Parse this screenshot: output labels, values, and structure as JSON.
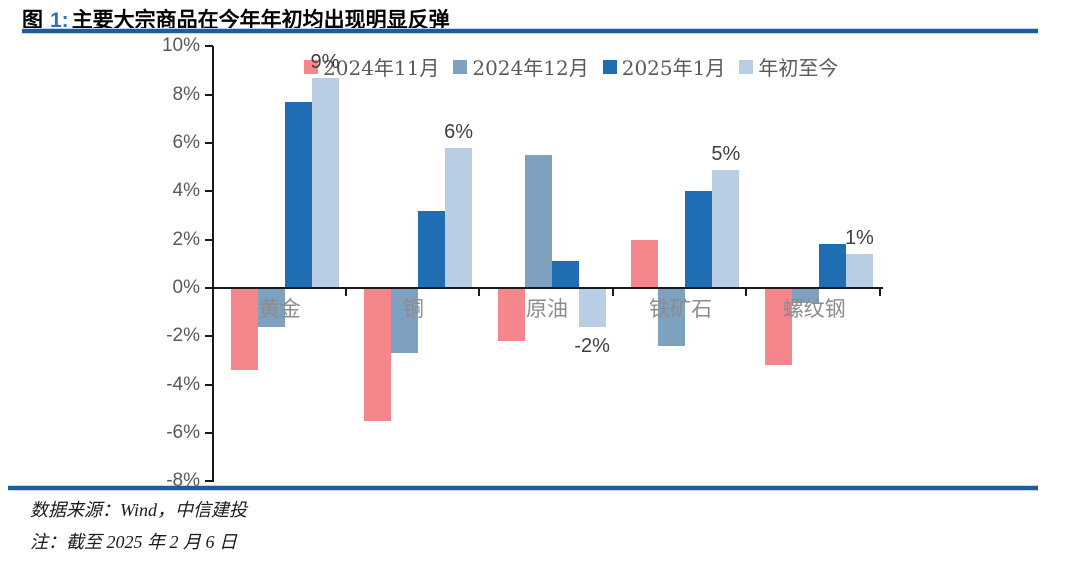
{
  "header": {
    "figure_label": "图",
    "figure_number": "1:",
    "title": "主要大宗商品在今年年初均出现明显反弹"
  },
  "chart_data": {
    "type": "bar",
    "title": "主要大宗商品在今年年初均出现明显反弹",
    "categories": [
      "黄金",
      "铜",
      "原油",
      "铁矿石",
      "螺纹钢"
    ],
    "series": [
      {
        "name": "2024年11月",
        "color": "#F5868C",
        "values": [
          -3.4,
          -5.5,
          -2.2,
          2.0,
          -3.2
        ]
      },
      {
        "name": "2024年12月",
        "color": "#7EA1C0",
        "values": [
          -1.6,
          -2.7,
          5.5,
          -2.4,
          -0.6
        ]
      },
      {
        "name": "2025年1月",
        "color": "#1F6DB3",
        "values": [
          7.7,
          3.2,
          1.1,
          4.0,
          1.8
        ]
      },
      {
        "name": "年初至今",
        "color": "#B9CDE4",
        "values": [
          8.7,
          5.8,
          -1.6,
          4.9,
          1.4
        ],
        "labels": [
          "9%",
          "6%",
          "-2%",
          "5%",
          "1%"
        ]
      }
    ],
    "xlabel": "",
    "ylabel": "",
    "ylim": [
      -8,
      10
    ],
    "yticks": [
      10,
      8,
      6,
      4,
      2,
      0,
      -2,
      -4,
      -6,
      -8
    ],
    "ytick_labels": [
      "10%",
      "8%",
      "6%",
      "4%",
      "2%",
      "0%",
      "-2%",
      "-4%",
      "-6%",
      "-8%"
    ],
    "grid": false,
    "legend_position": "top"
  },
  "footer": {
    "source": "数据来源：Wind，中信建投",
    "note": "注：截至 2025 年 2 月 6 日"
  },
  "colors": {
    "figure_number_blue": "#2E74B5",
    "divider_blue": "#1F5C99",
    "divider_edge_blue": "#BDD7EE",
    "axis_line": "#1a1a1a",
    "ytick_text": "#595959",
    "category_text": "#8C8C8C",
    "data_label_text": "#3F3F3F",
    "legend_text": "#595959"
  }
}
